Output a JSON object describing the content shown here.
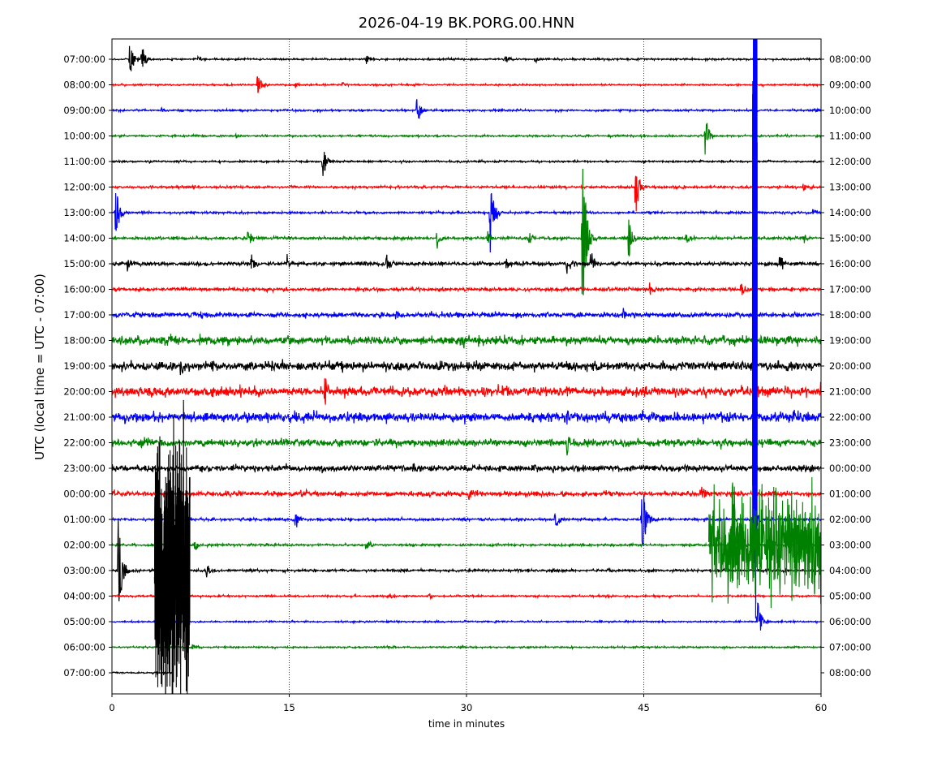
{
  "chart_data": {
    "type": "line",
    "title": "2026-04-19 BK.PORG.00.HNN",
    "xlabel": "time in minutes",
    "ylabel": "UTC (local time = UTC - 07:00)",
    "xlim": [
      0,
      60
    ],
    "x_ticks": [
      0,
      15,
      30,
      45,
      60
    ],
    "x_tick_labels": [
      "0",
      "15",
      "30",
      "45",
      "60"
    ],
    "vertical_gridlines_at": [
      15,
      30,
      45
    ],
    "colors": [
      "#000000",
      "#ff0000",
      "#0000ff",
      "#008000"
    ],
    "left_tick_labels": [
      "07:00:00",
      "08:00:00",
      "09:00:00",
      "10:00:00",
      "11:00:00",
      "12:00:00",
      "13:00:00",
      "14:00:00",
      "15:00:00",
      "16:00:00",
      "17:00:00",
      "18:00:00",
      "19:00:00",
      "20:00:00",
      "21:00:00",
      "22:00:00",
      "23:00:00",
      "00:00:00",
      "01:00:00",
      "02:00:00",
      "03:00:00",
      "04:00:00",
      "05:00:00",
      "06:00:00",
      "07:00:00"
    ],
    "right_tick_labels": [
      "08:00:00",
      "09:00:00",
      "10:00:00",
      "11:00:00",
      "12:00:00",
      "13:00:00",
      "14:00:00",
      "15:00:00",
      "16:00:00",
      "17:00:00",
      "18:00:00",
      "19:00:00",
      "20:00:00",
      "21:00:00",
      "22:00:00",
      "23:00:00",
      "00:00:00",
      "01:00:00",
      "02:00:00",
      "03:00:00",
      "04:00:00",
      "05:00:00",
      "06:00:00",
      "07:00:00",
      "08:00:00"
    ],
    "traces": [
      {
        "hour": "07:00:00",
        "color": "#000000",
        "noise": 1.0,
        "end_minute": 60,
        "events": [
          {
            "t": 1.5,
            "amp": 30
          },
          {
            "t": 2.5,
            "amp": 22
          },
          {
            "t": 7.3,
            "amp": 5
          },
          {
            "t": 21.5,
            "amp": 6
          },
          {
            "t": 33.3,
            "amp": 7
          },
          {
            "t": 35.8,
            "amp": 5
          }
        ]
      },
      {
        "hour": "08:00:00",
        "color": "#ff0000",
        "noise": 0.9,
        "end_minute": 60,
        "events": [
          {
            "t": 12.3,
            "amp": 16
          },
          {
            "t": 15.5,
            "amp": 4
          },
          {
            "t": 19.5,
            "amp": 3
          }
        ]
      },
      {
        "hour": "09:00:00",
        "color": "#0000ff",
        "noise": 1.0,
        "end_minute": 60,
        "events": [
          {
            "t": 4.2,
            "amp": 5
          },
          {
            "t": 25.8,
            "amp": 20
          },
          {
            "t": 59.5,
            "amp": 8
          }
        ]
      },
      {
        "hour": "10:00:00",
        "color": "#008000",
        "noise": 1.0,
        "end_minute": 60,
        "events": [
          {
            "t": 10.5,
            "amp": 4
          },
          {
            "t": 50.2,
            "amp": 30
          }
        ]
      },
      {
        "hour": "11:00:00",
        "color": "#000000",
        "noise": 1.0,
        "end_minute": 60,
        "events": [
          {
            "t": 17.8,
            "amp": 25
          }
        ]
      },
      {
        "hour": "12:00:00",
        "color": "#ff0000",
        "noise": 1.3,
        "end_minute": 60,
        "events": [
          {
            "t": 44.3,
            "amp": 40
          },
          {
            "t": 53.5,
            "amp": 4
          },
          {
            "t": 58.5,
            "amp": 6
          }
        ]
      },
      {
        "hour": "13:00:00",
        "color": "#0000ff",
        "noise": 1.2,
        "end_minute": 60,
        "events": [
          {
            "t": 0.3,
            "amp": 40
          },
          {
            "t": 2.5,
            "amp": 5
          },
          {
            "t": 32.0,
            "amp": 55
          },
          {
            "t": 59.3,
            "amp": 6
          }
        ]
      },
      {
        "hour": "14:00:00",
        "color": "#008000",
        "noise": 1.5,
        "end_minute": 60,
        "events": [
          {
            "t": 11.5,
            "amp": 12
          },
          {
            "t": 27.5,
            "amp": 14
          },
          {
            "t": 31.8,
            "amp": 10
          },
          {
            "t": 35.3,
            "amp": 10
          },
          {
            "t": 39.8,
            "amp": 140
          },
          {
            "t": 43.7,
            "amp": 40
          },
          {
            "t": 48.5,
            "amp": 10
          },
          {
            "t": 58.5,
            "amp": 8
          }
        ]
      },
      {
        "hour": "15:00:00",
        "color": "#000000",
        "noise": 2.0,
        "end_minute": 60,
        "events": [
          {
            "t": 1.3,
            "amp": 12
          },
          {
            "t": 11.8,
            "amp": 14
          },
          {
            "t": 14.8,
            "amp": 12
          },
          {
            "t": 23.2,
            "amp": 12
          },
          {
            "t": 33.2,
            "amp": 14
          },
          {
            "t": 38.5,
            "amp": 16
          },
          {
            "t": 40.5,
            "amp": 20
          },
          {
            "t": 56.5,
            "amp": 20
          }
        ]
      },
      {
        "hour": "16:00:00",
        "color": "#ff0000",
        "noise": 1.8,
        "end_minute": 60,
        "events": [
          {
            "t": 45.5,
            "amp": 12
          },
          {
            "t": 53.2,
            "amp": 14
          }
        ]
      },
      {
        "hour": "17:00:00",
        "color": "#0000ff",
        "noise": 2.6,
        "end_minute": 60,
        "events": [
          {
            "t": 7.5,
            "amp": 6
          },
          {
            "t": 24.0,
            "amp": 8
          },
          {
            "t": 43.2,
            "amp": 8
          }
        ]
      },
      {
        "hour": "18:00:00",
        "color": "#008000",
        "noise": 4.5,
        "end_minute": 60,
        "events": [
          {
            "t": 29.5,
            "amp": 10
          }
        ]
      },
      {
        "hour": "19:00:00",
        "color": "#000000",
        "noise": 4.5,
        "end_minute": 60,
        "events": [
          {
            "t": 5.8,
            "amp": 14
          },
          {
            "t": 8.5,
            "amp": 10
          },
          {
            "t": 29.0,
            "amp": 8
          }
        ]
      },
      {
        "hour": "20:00:00",
        "color": "#ff0000",
        "noise": 5.0,
        "end_minute": 60,
        "events": [
          {
            "t": 18.0,
            "amp": 20
          },
          {
            "t": 33.0,
            "amp": 12
          },
          {
            "t": 60.0,
            "amp": 20
          }
        ]
      },
      {
        "hour": "21:00:00",
        "color": "#0000ff",
        "noise": 5.0,
        "end_minute": 60,
        "events": [
          {
            "t": 38.5,
            "amp": 10
          }
        ]
      },
      {
        "hour": "22:00:00",
        "color": "#008000",
        "noise": 3.6,
        "end_minute": 60,
        "events": [
          {
            "t": 2.5,
            "amp": 10
          },
          {
            "t": 38.5,
            "amp": 18
          },
          {
            "t": 51.5,
            "amp": 10
          }
        ]
      },
      {
        "hour": "23:00:00",
        "color": "#000000",
        "noise": 3.3,
        "end_minute": 60,
        "events": [
          {
            "t": 25.5,
            "amp": 8
          },
          {
            "t": 48.5,
            "amp": 8
          }
        ]
      },
      {
        "hour": "00:00:00",
        "color": "#ff0000",
        "noise": 2.6,
        "end_minute": 60,
        "events": [
          {
            "t": 16.0,
            "amp": 10
          },
          {
            "t": 30.2,
            "amp": 10
          },
          {
            "t": 49.8,
            "amp": 14
          }
        ]
      },
      {
        "hour": "01:00:00",
        "color": "#0000ff",
        "noise": 1.4,
        "end_minute": 60,
        "events": [
          {
            "t": 15.5,
            "amp": 14
          },
          {
            "t": 37.5,
            "amp": 16
          },
          {
            "t": 44.8,
            "amp": 65
          },
          {
            "t": 54.5,
            "amp": 10
          }
        ]
      },
      {
        "hour": "02:00:00",
        "color": "#008000",
        "noise": 1.2,
        "end_minute": 60,
        "events": [
          {
            "t": 7.0,
            "amp": 8
          },
          {
            "t": 21.5,
            "amp": 10
          },
          {
            "t": 52.5,
            "amp": 140
          },
          {
            "t": 57.8,
            "amp": 60
          }
        ]
      },
      {
        "hour": "03:00:00",
        "color": "#000000",
        "noise": 1.4,
        "end_minute": 60,
        "events": [
          {
            "t": 0.5,
            "amp": 80
          },
          {
            "t": 4.8,
            "amp": 160
          },
          {
            "t": 8.0,
            "amp": 10
          }
        ]
      },
      {
        "hour": "04:00:00",
        "color": "#ff0000",
        "noise": 1.0,
        "end_minute": 60,
        "events": [
          {
            "t": 23.5,
            "amp": 6
          },
          {
            "t": 26.8,
            "amp": 5
          },
          {
            "t": 41.5,
            "amp": 4
          }
        ]
      },
      {
        "hour": "05:00:00",
        "color": "#0000ff",
        "noise": 0.9,
        "end_minute": 60,
        "events": [
          {
            "t": 54.6,
            "amp": 30
          }
        ]
      },
      {
        "hour": "06:00:00",
        "color": "#008000",
        "noise": 0.9,
        "end_minute": 60,
        "events": [
          {
            "t": 6.8,
            "amp": 4
          },
          {
            "t": 29.5,
            "amp": 4
          }
        ]
      },
      {
        "hour": "07:00:00",
        "color": "#000000",
        "noise": 0.8,
        "end_minute": 5.2,
        "events": []
      }
    ],
    "overlays": [
      {
        "color": "#000000",
        "from_trace": "03:00:00",
        "minute_start": 3.6,
        "minute_end": 6.6,
        "amp": 230
      },
      {
        "color": "#0000ff",
        "from_trace": "17:00:00",
        "minute_start": 54.2,
        "minute_end": 54.6,
        "amp": 500
      },
      {
        "color": "#008000",
        "from_trace": "02:00:00",
        "minute_start": 50.5,
        "minute_end": 60,
        "amp": 90
      }
    ]
  }
}
